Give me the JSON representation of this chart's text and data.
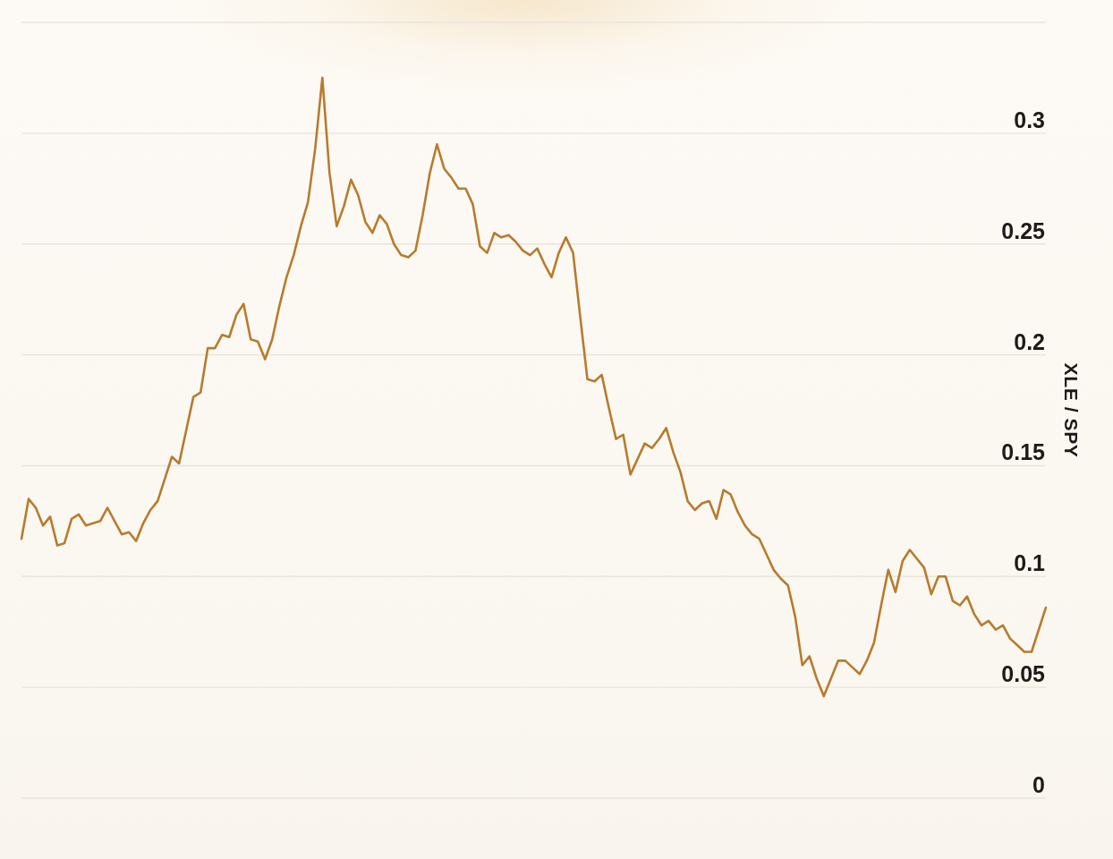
{
  "chart_data": {
    "type": "line",
    "ylabel": "XLE / SPY",
    "categories": [
      null,
      null,
      null,
      null,
      null,
      null,
      null,
      null,
      null,
      null,
      null,
      null,
      null,
      null,
      null,
      null,
      null,
      null,
      null,
      null,
      null,
      null,
      null,
      null,
      null,
      null,
      null,
      null,
      null,
      null,
      null,
      null,
      null,
      null,
      null,
      null,
      null,
      null,
      null,
      null,
      null,
      null,
      null,
      null,
      null,
      null,
      null,
      null,
      null,
      null,
      null,
      null,
      null,
      null,
      null,
      null,
      null,
      null,
      null,
      null,
      null,
      null,
      null,
      null,
      null,
      null,
      null,
      null,
      null,
      null,
      null,
      null,
      null,
      null,
      null,
      null,
      null,
      null,
      null,
      null,
      null,
      null,
      null,
      null,
      null,
      null,
      null,
      null,
      null,
      null,
      null,
      null,
      null,
      null,
      null,
      null,
      null,
      null,
      null,
      null,
      null,
      null,
      null,
      null,
      null,
      null,
      null,
      null,
      null,
      null,
      null,
      null,
      null,
      null,
      null,
      null,
      null,
      null,
      null,
      null,
      null,
      null,
      null,
      null,
      null,
      null,
      null,
      null,
      null,
      null,
      null,
      null,
      null,
      null,
      null,
      null,
      null,
      null,
      null,
      null,
      null,
      null,
      null,
      null
    ],
    "series": [
      {
        "color": "#b87b2c",
        "values": [
          0.117,
          0.135,
          0.131,
          0.123,
          0.127,
          0.114,
          0.115,
          0.126,
          0.128,
          0.123,
          0.124,
          0.125,
          0.131,
          0.125,
          0.119,
          0.12,
          0.116,
          0.124,
          0.13,
          0.134,
          0.144,
          0.154,
          0.151,
          0.166,
          0.181,
          0.183,
          0.203,
          0.203,
          0.209,
          0.208,
          0.218,
          0.223,
          0.207,
          0.206,
          0.198,
          0.207,
          0.222,
          0.235,
          0.245,
          0.258,
          0.269,
          0.293,
          0.325,
          0.282,
          0.258,
          0.267,
          0.279,
          0.272,
          0.26,
          0.255,
          0.263,
          0.259,
          0.25,
          0.245,
          0.244,
          0.247,
          0.263,
          0.282,
          0.295,
          0.284,
          0.28,
          0.275,
          0.275,
          0.268,
          0.249,
          0.246,
          0.255,
          0.253,
          0.254,
          0.251,
          0.247,
          0.245,
          0.248,
          0.241,
          0.235,
          0.246,
          0.253,
          0.246,
          0.217,
          0.189,
          0.188,
          0.191,
          0.176,
          0.162,
          0.164,
          0.146,
          0.153,
          0.16,
          0.158,
          0.162,
          0.167,
          0.156,
          0.147,
          0.134,
          0.13,
          0.133,
          0.134,
          0.126,
          0.139,
          0.137,
          0.129,
          0.123,
          0.119,
          0.117,
          0.11,
          0.103,
          0.099,
          0.096,
          0.082,
          0.06,
          0.064,
          0.054,
          0.046,
          0.054,
          0.062,
          0.062,
          0.059,
          0.056,
          0.062,
          0.07,
          0.087,
          0.103,
          0.093,
          0.107,
          0.112,
          0.108,
          0.104,
          0.092,
          0.1,
          0.1,
          0.089,
          0.087,
          0.091,
          0.083,
          0.078,
          0.08,
          0.076,
          0.078,
          0.072,
          0.069,
          0.066,
          0.066,
          0.076,
          0.086
        ]
      }
    ],
    "ylim": [
      0,
      0.35
    ],
    "yticks": [
      0,
      0.05,
      0.1,
      0.15,
      0.2,
      0.25,
      0.3,
      {
        "value": 0.35,
        "label": null
      }
    ],
    "grid": "y",
    "tick_labels": "y",
    "marker": "none",
    "line_style": "solid"
  }
}
